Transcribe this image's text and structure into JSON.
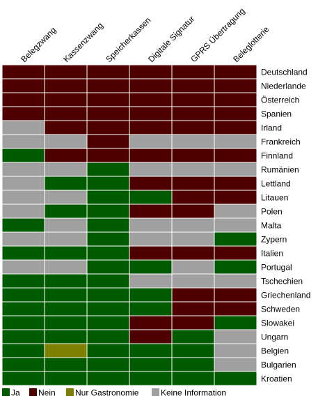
{
  "colors": {
    "ja": "#005a00",
    "nein": "#4f0000",
    "nur_gastronomie": "#808000",
    "keine_information": "#a0a0a0"
  },
  "chart_data": {
    "type": "heatmap",
    "columns": [
      "Belegzwang",
      "Kassenzwang",
      "Speicherkassen",
      "Digitale Signatur",
      "GPRS Übertragung",
      "Beleglotterie"
    ],
    "rows": [
      "Deutschland",
      "Niederlande",
      "Österreich",
      "Spanien",
      "Irland",
      "Frankreich",
      "Finnland",
      "Rumänien",
      "Lettland",
      "Litauen",
      "Polen",
      "Malta",
      "Zypern",
      "Italien",
      "Portugal",
      "Tschechien",
      "Griechenland",
      "Schweden",
      "Slowakei",
      "Ungarn",
      "Belgien",
      "Bulgarien",
      "Kroatien"
    ],
    "categories": [
      {
        "key": "ja",
        "label": "Ja"
      },
      {
        "key": "nein",
        "label": "Nein"
      },
      {
        "key": "nur_gastronomie",
        "label": "Nur Gastronomie"
      },
      {
        "key": "keine_information",
        "label": "Keine Information"
      }
    ],
    "values": [
      [
        "nein",
        "nein",
        "nein",
        "nein",
        "nein",
        "nein"
      ],
      [
        "nein",
        "nein",
        "nein",
        "nein",
        "nein",
        "nein"
      ],
      [
        "nein",
        "nein",
        "nein",
        "nein",
        "nein",
        "nein"
      ],
      [
        "nein",
        "nein",
        "nein",
        "nein",
        "nein",
        "nein"
      ],
      [
        "keine_information",
        "nein",
        "nein",
        "nein",
        "nein",
        "nein"
      ],
      [
        "keine_information",
        "keine_information",
        "nein",
        "keine_information",
        "keine_information",
        "keine_information"
      ],
      [
        "ja",
        "nein",
        "nein",
        "nein",
        "nein",
        "nein"
      ],
      [
        "keine_information",
        "keine_information",
        "ja",
        "keine_information",
        "keine_information",
        "keine_information"
      ],
      [
        "keine_information",
        "ja",
        "ja",
        "nein",
        "nein",
        "nein"
      ],
      [
        "keine_information",
        "keine_information",
        "ja",
        "ja",
        "nein",
        "nein"
      ],
      [
        "keine_information",
        "ja",
        "ja",
        "nein",
        "nein",
        "keine_information"
      ],
      [
        "ja",
        "keine_information",
        "ja",
        "keine_information",
        "keine_information",
        "keine_information"
      ],
      [
        "keine_information",
        "keine_information",
        "ja",
        "keine_information",
        "keine_information",
        "ja"
      ],
      [
        "ja",
        "ja",
        "ja",
        "nein",
        "nein",
        "nein"
      ],
      [
        "keine_information",
        "keine_information",
        "ja",
        "ja",
        "keine_information",
        "ja"
      ],
      [
        "ja",
        "ja",
        "ja",
        "keine_information",
        "keine_information",
        "keine_information"
      ],
      [
        "ja",
        "ja",
        "ja",
        "ja",
        "nein",
        "nein"
      ],
      [
        "ja",
        "ja",
        "ja",
        "ja",
        "nein",
        "nein"
      ],
      [
        "ja",
        "ja",
        "ja",
        "nein",
        "nein",
        "ja"
      ],
      [
        "ja",
        "ja",
        "ja",
        "nein",
        "ja",
        "keine_information"
      ],
      [
        "ja",
        "nur_gastronomie",
        "ja",
        "ja",
        "ja",
        "keine_information"
      ],
      [
        "ja",
        "ja",
        "ja",
        "ja",
        "ja",
        "keine_information"
      ],
      [
        "ja",
        "ja",
        "ja",
        "ja",
        "ja",
        "ja"
      ]
    ],
    "grid": true,
    "legend_position": "bottom-left"
  }
}
